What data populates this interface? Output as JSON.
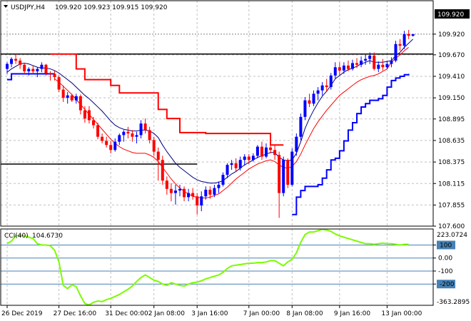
{
  "header": {
    "symbol": "USDJPY,H4",
    "ohlc": "109.920 109.923 109.915 109.920"
  },
  "price_tag": "109.920",
  "cci_header": {
    "name": "CCI(40)",
    "value": "104.6730"
  },
  "cci_tags": {
    "top": "223.0724",
    "bottom": "-363.2895"
  },
  "colors": {
    "bull_candle": "#0000ff",
    "bear_candle": "#ff0000",
    "fast_ma": "#000080",
    "slow_ma": "#ff0000",
    "upper_step": "#ff0000",
    "lower_step": "#0000ff",
    "cci_line": "#7cfc00",
    "cci_levels": "#4682b4",
    "tag_bg": "#4682b4"
  },
  "chart_data": [
    {
      "type": "candlestick",
      "title": "USDJPY,H4",
      "ylim": [
        107.6,
        110.16
      ],
      "y_ticks": [
        109.92,
        109.67,
        109.41,
        109.15,
        108.895,
        108.635,
        108.375,
        108.115,
        107.855,
        107.6
      ],
      "y_tick_labels": [
        "109.920",
        "109.670",
        "109.410",
        "109.150",
        "108.895",
        "108.635",
        "108.375",
        "108.115",
        "107.855",
        "107.600"
      ],
      "x_tick_labels": [
        {
          "i": 0,
          "label": "26 Dec 2019"
        },
        {
          "i": 12,
          "label": "27 Dec 16:00"
        },
        {
          "i": 24,
          "label": "31 Dec 00:00"
        },
        {
          "i": 34,
          "label": "2 Jan 08:00"
        },
        {
          "i": 44,
          "label": "3 Jan 16:00"
        },
        {
          "i": 56,
          "label": "7 Jan 00:00"
        },
        {
          "i": 66,
          "label": "8 Jan 08:00"
        },
        {
          "i": 77,
          "label": "9 Jan 16:00"
        },
        {
          "i": 88,
          "label": "13 Jan 00:00"
        }
      ],
      "grid": true,
      "candles": [
        [
          109.5,
          109.58,
          109.44,
          109.56
        ],
        [
          109.56,
          109.64,
          109.52,
          109.62
        ],
        [
          109.62,
          109.68,
          109.56,
          109.6
        ],
        [
          109.6,
          109.63,
          109.5,
          109.55
        ],
        [
          109.55,
          109.57,
          109.44,
          109.47
        ],
        [
          109.47,
          109.52,
          109.42,
          109.5
        ],
        [
          109.5,
          109.54,
          109.44,
          109.47
        ],
        [
          109.47,
          109.52,
          109.4,
          109.5
        ],
        [
          109.5,
          109.58,
          109.46,
          109.55
        ],
        [
          109.55,
          109.56,
          109.42,
          109.45
        ],
        [
          109.45,
          109.47,
          109.36,
          109.44
        ],
        [
          109.44,
          109.48,
          109.36,
          109.4
        ],
        [
          109.4,
          109.42,
          109.22,
          109.25
        ],
        [
          109.25,
          109.3,
          109.1,
          109.15
        ],
        [
          109.15,
          109.22,
          109.08,
          109.18
        ],
        [
          109.18,
          109.2,
          109.1,
          109.12
        ],
        [
          109.12,
          109.2,
          109.08,
          109.17
        ],
        [
          109.17,
          109.19,
          108.95,
          109.0
        ],
        [
          109.0,
          109.05,
          108.85,
          108.9
        ],
        [
          109.0,
          109.05,
          108.84,
          108.88
        ],
        [
          108.88,
          108.92,
          108.78,
          108.82
        ],
        [
          108.82,
          108.85,
          108.65,
          108.68
        ],
        [
          108.68,
          108.72,
          108.6,
          108.63
        ],
        [
          108.63,
          108.68,
          108.55,
          108.58
        ],
        [
          108.58,
          108.63,
          108.48,
          108.52
        ],
        [
          108.52,
          108.66,
          108.5,
          108.62
        ],
        [
          108.62,
          108.72,
          108.58,
          108.7
        ],
        [
          108.7,
          108.76,
          108.62,
          108.74
        ],
        [
          108.74,
          108.8,
          108.66,
          108.72
        ],
        [
          108.72,
          108.76,
          108.62,
          108.68
        ],
        [
          108.68,
          108.74,
          108.6,
          108.7
        ],
        [
          108.7,
          108.88,
          108.66,
          108.84
        ],
        [
          108.84,
          108.9,
          108.72,
          108.76
        ],
        [
          108.76,
          108.8,
          108.6,
          108.64
        ],
        [
          108.64,
          108.68,
          108.45,
          108.5
        ],
        [
          108.5,
          108.55,
          108.15,
          108.4
        ],
        [
          108.4,
          108.45,
          108.1,
          108.15
        ],
        [
          108.15,
          108.2,
          107.98,
          108.05
        ],
        [
          108.05,
          108.12,
          107.9,
          108.0
        ],
        [
          108.0,
          108.1,
          107.86,
          108.03
        ],
        [
          108.03,
          108.1,
          107.96,
          108.05
        ],
        [
          108.05,
          108.08,
          107.9,
          107.95
        ],
        [
          107.95,
          108.05,
          107.9,
          108.0
        ],
        [
          108.0,
          108.06,
          107.92,
          107.96
        ],
        [
          107.96,
          108.0,
          107.74,
          107.85
        ],
        [
          107.85,
          108.02,
          107.78,
          107.96
        ],
        [
          107.96,
          108.08,
          107.92,
          108.04
        ],
        [
          108.04,
          108.08,
          107.93,
          107.98
        ],
        [
          107.98,
          108.1,
          107.95,
          108.06
        ],
        [
          108.06,
          108.14,
          108.0,
          108.1
        ],
        [
          108.1,
          108.25,
          108.08,
          108.22
        ],
        [
          108.22,
          108.36,
          108.18,
          108.34
        ],
        [
          108.34,
          108.4,
          108.28,
          108.36
        ],
        [
          108.36,
          108.42,
          108.26,
          108.3
        ],
        [
          108.3,
          108.44,
          108.27,
          108.4
        ],
        [
          108.4,
          108.47,
          108.33,
          108.44
        ],
        [
          108.44,
          108.47,
          108.35,
          108.4
        ],
        [
          108.4,
          108.48,
          108.38,
          108.45
        ],
        [
          108.45,
          108.58,
          108.42,
          108.56
        ],
        [
          108.56,
          108.62,
          108.4,
          108.44
        ],
        [
          108.44,
          108.6,
          108.42,
          108.55
        ],
        [
          108.55,
          108.6,
          108.48,
          108.52
        ],
        [
          108.52,
          108.58,
          108.4,
          108.46
        ],
        [
          108.46,
          108.5,
          107.7,
          108.0
        ],
        [
          108.0,
          108.44,
          107.96,
          108.4
        ],
        [
          108.4,
          108.42,
          108.06,
          108.1
        ],
        [
          108.1,
          108.54,
          108.08,
          108.5
        ],
        [
          108.5,
          108.72,
          108.45,
          108.68
        ],
        [
          108.68,
          108.96,
          108.64,
          108.92
        ],
        [
          108.92,
          109.16,
          108.88,
          109.12
        ],
        [
          109.12,
          109.2,
          109.04,
          109.08
        ],
        [
          109.08,
          109.24,
          109.05,
          109.2
        ],
        [
          109.2,
          109.28,
          109.12,
          109.24
        ],
        [
          109.24,
          109.34,
          109.18,
          109.3
        ],
        [
          109.3,
          109.38,
          109.22,
          109.28
        ],
        [
          109.28,
          109.45,
          109.25,
          109.42
        ],
        [
          109.42,
          109.58,
          109.38,
          109.52
        ],
        [
          109.52,
          109.58,
          109.42,
          109.48
        ],
        [
          109.48,
          109.58,
          109.44,
          109.54
        ],
        [
          109.54,
          109.6,
          109.47,
          109.5
        ],
        [
          109.5,
          109.61,
          109.48,
          109.57
        ],
        [
          109.57,
          109.63,
          109.51,
          109.55
        ],
        [
          109.55,
          109.65,
          109.52,
          109.6
        ],
        [
          109.6,
          109.67,
          109.55,
          109.62
        ],
        [
          109.62,
          109.7,
          109.56,
          109.66
        ],
        [
          109.66,
          109.7,
          109.48,
          109.5
        ],
        [
          109.5,
          109.59,
          109.46,
          109.55
        ],
        [
          109.55,
          109.62,
          109.48,
          109.52
        ],
        [
          109.52,
          109.6,
          109.5,
          109.56
        ],
        [
          109.56,
          109.64,
          109.52,
          109.6
        ],
        [
          109.6,
          109.84,
          109.58,
          109.8
        ],
        [
          109.8,
          109.86,
          109.72,
          109.78
        ],
        [
          109.78,
          109.96,
          109.74,
          109.92
        ],
        [
          109.92,
          109.97,
          109.86,
          109.9
        ],
        [
          109.9,
          109.92,
          109.89,
          109.92
        ]
      ],
      "fast_ma": [
        109.46,
        109.5,
        109.53,
        109.56,
        109.57,
        109.56,
        109.54,
        109.52,
        109.51,
        109.51,
        109.5,
        109.48,
        109.45,
        109.41,
        109.37,
        109.33,
        109.28,
        109.23,
        109.18,
        109.14,
        109.09,
        109.04,
        108.99,
        108.93,
        108.87,
        108.82,
        108.79,
        108.77,
        108.76,
        108.75,
        108.75,
        108.76,
        108.76,
        108.75,
        108.72,
        108.67,
        108.58,
        108.5,
        108.43,
        108.36,
        108.31,
        108.27,
        108.23,
        108.19,
        108.16,
        108.14,
        108.13,
        108.12,
        108.12,
        108.13,
        108.15,
        108.19,
        108.23,
        108.26,
        108.3,
        108.34,
        108.37,
        108.4,
        108.43,
        108.45,
        108.47,
        108.49,
        108.49,
        108.43,
        108.4,
        108.39,
        108.4,
        108.48,
        108.62,
        108.78,
        108.9,
        109.0,
        109.09,
        109.17,
        109.23,
        109.3,
        109.38,
        109.42,
        109.46,
        109.49,
        109.51,
        109.53,
        109.56,
        109.58,
        109.6,
        109.58,
        109.58,
        109.58,
        109.59,
        109.6,
        109.66,
        109.7,
        109.76,
        109.81,
        109.86
      ],
      "slow_ma": [
        null,
        null,
        null,
        null,
        null,
        null,
        null,
        null,
        null,
        null,
        null,
        109.38,
        109.34,
        109.29,
        109.24,
        109.19,
        109.13,
        109.07,
        109.01,
        108.95,
        108.89,
        108.83,
        108.77,
        108.71,
        108.65,
        108.6,
        108.56,
        108.53,
        108.51,
        108.49,
        108.48,
        108.48,
        108.48,
        108.46,
        108.43,
        108.38,
        108.31,
        108.24,
        108.17,
        108.11,
        108.06,
        108.02,
        107.99,
        107.96,
        107.95,
        107.94,
        107.94,
        107.95,
        107.97,
        107.99,
        108.03,
        108.07,
        108.12,
        108.17,
        108.21,
        108.25,
        108.29,
        108.32,
        108.35,
        108.37,
        108.39,
        108.4,
        108.38,
        108.34,
        108.31,
        108.3,
        108.32,
        108.38,
        108.47,
        108.58,
        108.68,
        108.78,
        108.86,
        108.93,
        109.0,
        109.06,
        109.12,
        109.18,
        109.22,
        109.26,
        109.3,
        109.34,
        109.37,
        109.39,
        109.41,
        109.42,
        109.44,
        109.47,
        109.5,
        109.58,
        109.63,
        109.67,
        109.72,
        109.76
      ],
      "upper_step": [
        null,
        null,
        null,
        null,
        null,
        null,
        null,
        null,
        null,
        null,
        109.68,
        109.68,
        109.68,
        109.68,
        109.68,
        109.68,
        109.5,
        109.5,
        109.37,
        109.37,
        109.37,
        109.37,
        109.37,
        109.37,
        109.3,
        109.3,
        109.21,
        109.21,
        109.21,
        109.21,
        109.21,
        109.21,
        109.21,
        109.21,
        109.21,
        109.01,
        109.01,
        108.9,
        108.9,
        108.9,
        108.73,
        108.73,
        108.73,
        108.73,
        108.73,
        108.73,
        108.72,
        108.72,
        108.72,
        108.72,
        108.72,
        108.72,
        108.72,
        108.72,
        108.72,
        108.72,
        108.72,
        108.72,
        108.72,
        108.72,
        108.72,
        108.58,
        108.58,
        108.58,
        108.58
      ],
      "lower_step": [
        109.37,
        109.44,
        109.44,
        109.44,
        109.44,
        109.44,
        109.44,
        109.44,
        109.44,
        109.44,
        109.44,
        109.44,
        null,
        null,
        null,
        null,
        null,
        null,
        null,
        null,
        null,
        null,
        null,
        null,
        null,
        null,
        null,
        null,
        null,
        null,
        null,
        null,
        null,
        null,
        null,
        null,
        null,
        null,
        null,
        null,
        null,
        null,
        null,
        null,
        null,
        null,
        null,
        null,
        null,
        null,
        null,
        null,
        null,
        null,
        null,
        null,
        null,
        null,
        null,
        null,
        null,
        null,
        null,
        null,
        null,
        null,
        107.74,
        107.95,
        108.03,
        108.08,
        108.08,
        108.08,
        108.1,
        108.18,
        108.28,
        108.4,
        108.42,
        108.51,
        108.63,
        108.76,
        108.85,
        108.96,
        109.04,
        109.08,
        109.12,
        109.12,
        109.14,
        109.18,
        109.28,
        109.36,
        109.39,
        109.41,
        109.43,
        109.44
      ],
      "h_lines": [
        109.68,
        108.35
      ]
    },
    {
      "type": "line",
      "title": "CCI(40)",
      "ylim": [
        -363.2895,
        223.0724
      ],
      "levels": [
        100,
        0,
        -100,
        -200
      ],
      "y_tick_labels": [
        "100",
        "0.00",
        "-100",
        "-200"
      ],
      "values": [
        110,
        130,
        170,
        175,
        170,
        160,
        150,
        110,
        100,
        100,
        95,
        60,
        -30,
        -210,
        -235,
        -205,
        -220,
        -290,
        -350,
        -360,
        -340,
        -330,
        -335,
        -320,
        -310,
        -295,
        -280,
        -260,
        -240,
        -215,
        -180,
        -150,
        -130,
        -150,
        -170,
        -180,
        -200,
        -210,
        -190,
        -200,
        -210,
        -215,
        -200,
        -190,
        -185,
        -175,
        -160,
        -150,
        -140,
        -130,
        -110,
        -80,
        -60,
        -55,
        -50,
        -45,
        -40,
        -40,
        -35,
        -35,
        -30,
        -20,
        -20,
        -40,
        -60,
        -30,
        -10,
        40,
        120,
        180,
        200,
        200,
        210,
        220,
        215,
        205,
        185,
        170,
        160,
        150,
        140,
        130,
        120,
        110,
        110,
        105,
        110,
        115,
        110,
        110,
        105,
        100,
        105,
        105
      ]
    }
  ]
}
